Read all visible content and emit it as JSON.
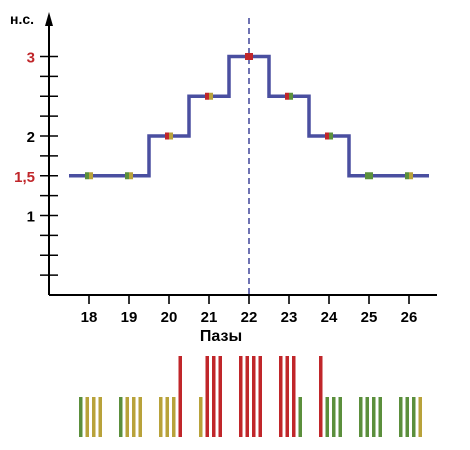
{
  "chart_data": {
    "type": "line",
    "step": true,
    "ylabel": "н.с.",
    "xlabel": "Пазы",
    "x": [
      18,
      19,
      20,
      21,
      22,
      23,
      24,
      25,
      26
    ],
    "y": [
      1.5,
      1.5,
      2,
      2.5,
      3,
      2.5,
      2,
      1.5,
      1.5
    ],
    "xlim": [
      17.0,
      26.5
    ],
    "ylim": [
      0,
      3.2
    ],
    "y_minor_step": 0.25,
    "y_tick_labels": [
      {
        "value": 1,
        "label": "1",
        "color": "#000000"
      },
      {
        "value": 1.5,
        "label": "1,5",
        "color": "#c0262a"
      },
      {
        "value": 2,
        "label": "2",
        "color": "#000000"
      },
      {
        "value": 3,
        "label": "3",
        "color": "#c0262a"
      }
    ],
    "vertical_dashed_line_x": 22,
    "grid": false,
    "line_color": "#4a4fa0",
    "point_colors": [
      "#5b8f3c",
      "#b8a23a",
      "#c0262a"
    ],
    "markers": [
      {
        "x": 18,
        "colors": [
          "#5b8f3c",
          "#b8a23a"
        ]
      },
      {
        "x": 19,
        "colors": [
          "#5b8f3c",
          "#b8a23a"
        ]
      },
      {
        "x": 20,
        "colors": [
          "#c0262a",
          "#b8a23a"
        ]
      },
      {
        "x": 21,
        "colors": [
          "#c0262a",
          "#b8a23a"
        ]
      },
      {
        "x": 22,
        "colors": [
          "#c0262a",
          "#c0262a"
        ]
      },
      {
        "x": 23,
        "colors": [
          "#c0262a",
          "#5b8f3c"
        ]
      },
      {
        "x": 24,
        "colors": [
          "#c0262a",
          "#5b8f3c"
        ]
      },
      {
        "x": 25,
        "colors": [
          "#5b8f3c",
          "#5b8f3c"
        ]
      },
      {
        "x": 26,
        "colors": [
          "#5b8f3c",
          "#b8a23a"
        ]
      }
    ],
    "slot_bars": [
      {
        "colors": [
          "#5b8f3c",
          "#b8a23a",
          "#b8a23a",
          "#b8a23a"
        ],
        "tall": [
          false,
          false,
          false,
          false
        ]
      },
      {
        "colors": [
          "#5b8f3c",
          "#b8a23a",
          "#b8a23a",
          "#b8a23a"
        ],
        "tall": [
          false,
          false,
          false,
          false
        ]
      },
      {
        "colors": [
          "#b8a23a",
          "#b8a23a",
          "#b8a23a",
          "#c0262a"
        ],
        "tall": [
          false,
          false,
          false,
          true
        ]
      },
      {
        "colors": [
          "#b8a23a",
          "#c0262a",
          "#c0262a",
          "#c0262a"
        ],
        "tall": [
          false,
          true,
          true,
          true
        ]
      },
      {
        "colors": [
          "#c0262a",
          "#c0262a",
          "#c0262a",
          "#c0262a"
        ],
        "tall": [
          true,
          true,
          true,
          true
        ]
      },
      {
        "colors": [
          "#c0262a",
          "#c0262a",
          "#c0262a",
          "#5b8f3c"
        ],
        "tall": [
          true,
          true,
          true,
          false
        ]
      },
      {
        "colors": [
          "#c0262a",
          "#5b8f3c",
          "#5b8f3c",
          "#5b8f3c"
        ],
        "tall": [
          true,
          false,
          false,
          false
        ]
      },
      {
        "colors": [
          "#5b8f3c",
          "#5b8f3c",
          "#5b8f3c",
          "#5b8f3c"
        ],
        "tall": [
          false,
          false,
          false,
          false
        ]
      },
      {
        "colors": [
          "#5b8f3c",
          "#5b8f3c",
          "#5b8f3c",
          "#b8a23a"
        ],
        "tall": [
          false,
          false,
          false,
          false
        ]
      }
    ]
  }
}
